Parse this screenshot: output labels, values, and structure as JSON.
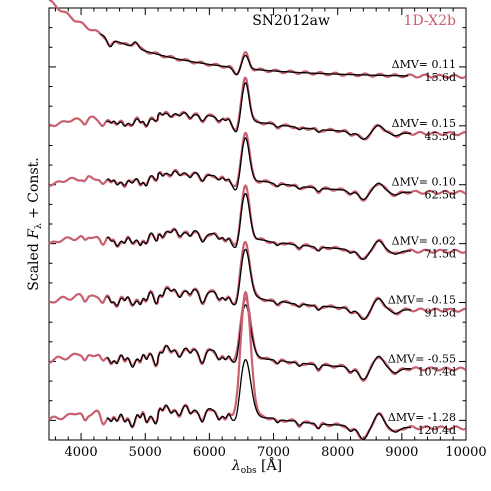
{
  "chart_data": {
    "type": "line",
    "title": "SN2012aw",
    "model_label": "1D-X2b",
    "xlabel": "λobs [Å]",
    "xlabel_main": "λ",
    "xlabel_sub": "obs",
    "xlabel_unit": " [Å]",
    "ylabel": "Scaled Fλ + Const.",
    "ylabel_pre": "Scaled ",
    "ylabel_F": "F",
    "ylabel_sub": "λ",
    "ylabel_post": " + Const.",
    "xlim": [
      3500,
      10000
    ],
    "xticks": [
      4000,
      5000,
      6000,
      7000,
      8000,
      9000,
      10000
    ],
    "colors": {
      "observed": "#000000",
      "model": "#c9606f"
    },
    "legend": [
      "SN2012aw",
      "1D-X2b"
    ],
    "panels": [
      {
        "label": "ΔMV= 0.11",
        "epoch": "15.6d",
        "obs_range": [
          4300,
          9100
        ],
        "model_range": [
          3500,
          10000
        ]
      },
      {
        "label": "ΔMV= 0.15",
        "epoch": "45.5d",
        "obs_range": [
          4400,
          9150
        ],
        "model_range": [
          3500,
          10000
        ]
      },
      {
        "label": "ΔMV= 0.10",
        "epoch": "62.5d",
        "obs_range": [
          4400,
          9150
        ],
        "model_range": [
          3500,
          10000
        ]
      },
      {
        "label": "ΔMV= 0.02",
        "epoch": "71.5d",
        "obs_range": [
          4400,
          9150
        ],
        "model_range": [
          3500,
          10000
        ]
      },
      {
        "label": "ΔMV= -0.15",
        "epoch": "91.5d",
        "obs_range": [
          4400,
          9150
        ],
        "model_range": [
          3500,
          10000
        ]
      },
      {
        "label": "ΔMV= -0.55",
        "epoch": "107.4d",
        "obs_range": [
          4400,
          9150
        ],
        "model_range": [
          3500,
          10000
        ]
      },
      {
        "label": "ΔMV= -1.28",
        "epoch": "120.4d",
        "obs_range": [
          4400,
          9150
        ],
        "model_range": [
          3500,
          10000
        ]
      }
    ]
  }
}
